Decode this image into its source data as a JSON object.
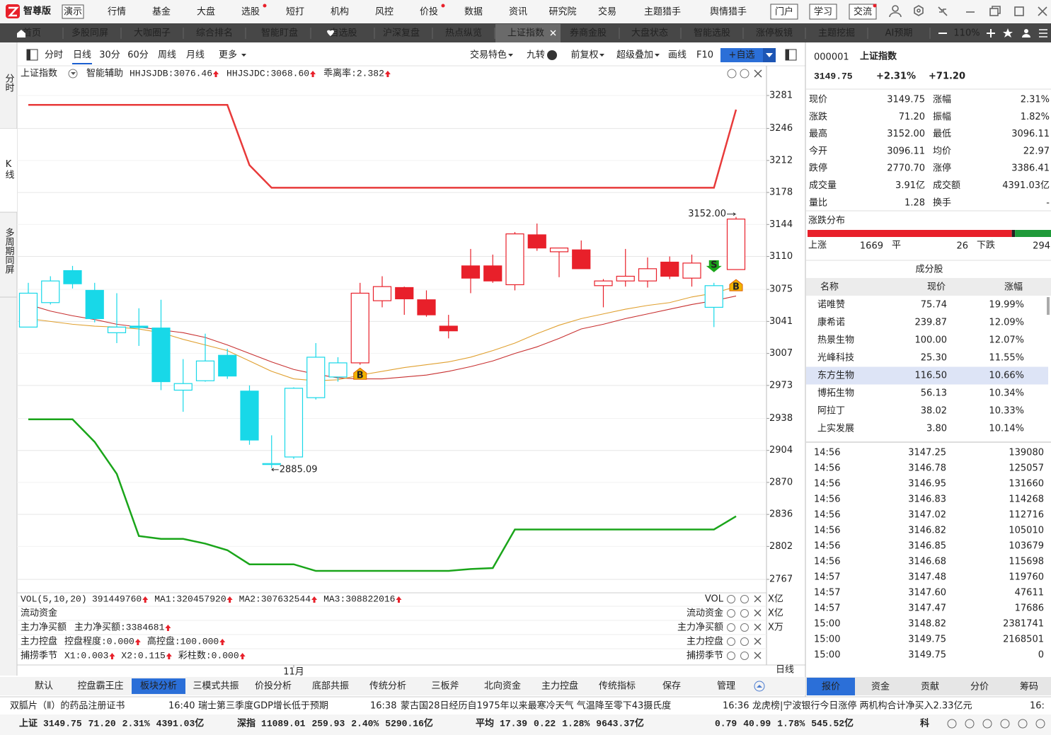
{
  "app": {
    "logo": "智尊版",
    "mode": "演示"
  },
  "menu": [
    "行情",
    "基金",
    "大盘",
    "选股",
    "短打",
    "机构",
    "风控",
    "价投",
    "数据",
    "资讯",
    "研究院",
    "交易",
    "主题猎手",
    "舆情猎手"
  ],
  "menu_right": [
    "门户",
    "学习",
    "交流"
  ],
  "tabs": [
    "首页",
    "多股同屏",
    "大咖圈子",
    "综合排名",
    "智能盯盘",
    "自选股",
    "沪深复盘",
    "热点纵览",
    "上证指数",
    "券商金股",
    "大盘状态",
    "智能选股",
    "涨停板镜",
    "主题挖掘",
    "AI预期"
  ],
  "tabs_active": 8,
  "zoom": "110%",
  "side_tabs": [
    "分时",
    "K线",
    "多周期同屏"
  ],
  "side_active": 1,
  "periods": [
    "分时",
    "日线",
    "30分",
    "60分",
    "周线",
    "月线",
    "更多"
  ],
  "period_active": 1,
  "toolbar": [
    "交易特色",
    "九转",
    "前复权",
    "超级叠加",
    "画线",
    "F10",
    "+自选"
  ],
  "chart_data": {
    "type": "candlestick",
    "title": "上证指数",
    "subtitle": "智能辅助",
    "indicators": [
      {
        "text": "HHJSJDB:3076.46",
        "color": "#d87a00"
      },
      {
        "text": "HHJSJDC:3068.60",
        "color": "#e8202a"
      },
      {
        "text": "乖离率:2.382",
        "color": "#d87a00"
      }
    ],
    "categories": [
      null,
      null,
      null,
      null,
      null,
      null,
      null,
      null,
      null,
      null,
      null,
      null,
      "11月",
      null,
      null,
      null,
      null,
      null,
      null,
      null,
      null,
      null,
      null,
      null,
      null,
      null,
      null,
      null,
      null,
      null,
      null,
      null,
      null
    ],
    "open": [
      3035,
      3061,
      3095,
      3074,
      3029,
      3036,
      3034,
      2968,
      2978,
      3005,
      2967,
      2889,
      2897,
      2960,
      2982,
      2997,
      3063,
      3077,
      3064,
      3036,
      3100,
      3100,
      3080,
      3133,
      3115,
      3117,
      3079,
      3084,
      3084,
      3104,
      3087,
      3056,
      3096.11
    ],
    "high": [
      3082,
      3089,
      3100,
      3082,
      3071,
      3055,
      3064,
      3001,
      3028,
      3012,
      2973,
      2920,
      2971,
      3018,
      3003,
      3082,
      3089,
      3078,
      3074,
      3048,
      3118,
      3112,
      3136,
      3145,
      3119,
      3127,
      3086,
      3118,
      3109,
      3110,
      3112,
      3082,
      3152
    ],
    "low": [
      3035,
      3059,
      3076,
      3040,
      3018,
      3015,
      2968,
      2945,
      2977,
      2980,
      2910,
      2885.09,
      2895,
      2958,
      2977,
      2995,
      3056,
      3048,
      3046,
      3023,
      3071,
      3082,
      3074,
      3116,
      3088,
      3097,
      3056,
      3078,
      3077,
      3086,
      3078,
      3035,
      3096.11
    ],
    "close": [
      3071,
      3084,
      3081,
      3044,
      3035,
      3034.5,
      2977,
      2975,
      2999,
      2983,
      2915,
      2890,
      2970,
      3003,
      2997,
      3071,
      3078,
      3065,
      3048,
      3031,
      3087,
      3084,
      3134,
      3119,
      3119,
      3097,
      3084,
      3089,
      3097,
      3089,
      3103,
      3079,
      3149.75
    ],
    "colors": [
      "#18d8e8",
      "#18d8e8",
      "#18d8e8",
      "#18d8e8",
      "#18d8e8",
      "#18d8e8",
      "#18d8e8",
      "#18d8e8",
      "#18d8e8",
      "#18d8e8",
      "#18d8e8",
      "#18d8e8",
      "#18d8e8",
      "#18d8e8",
      "#18d8e8",
      "#e8202a",
      "#e8202a",
      "#e8202a",
      "#e8202a",
      "#e8202a",
      "#e8202a",
      "#e8202a",
      "#e8202a",
      "#e8202a",
      "#e8202a",
      "#e8202a",
      "#e8202a",
      "#e8202a",
      "#e8202a",
      "#e8202a",
      "#e8202a",
      "#18d8e8",
      "#e8202a"
    ],
    "series": [
      {
        "color": "#e83a3a",
        "values": [
          3271,
          3271,
          3271,
          3271,
          3271,
          3271,
          3271,
          3271,
          3271,
          3271,
          3207,
          3183,
          3183,
          3183,
          3183,
          3183,
          3183,
          3183,
          3183,
          3183,
          3183,
          3183,
          3183,
          3183,
          3183,
          3183,
          3183,
          3183,
          3183,
          3183,
          3183,
          3183,
          3266
        ]
      },
      {
        "color": "#1aa51a",
        "values": [
          2937,
          2937,
          2937,
          2913,
          2879,
          2813,
          2810,
          2810,
          2805,
          2798,
          2783,
          2783,
          2783,
          2776,
          2776,
          2776,
          2776,
          2776,
          2776,
          2776,
          2778,
          2779,
          2820,
          2820,
          2820,
          2820,
          2820,
          2820,
          2820,
          2820,
          2820,
          2820,
          2834
        ]
      },
      {
        "color": "#c83030",
        "values": [
          3059,
          3052,
          3047,
          3043,
          3038,
          3035,
          3032,
          3029,
          3024,
          3016,
          3007,
          2998,
          2990,
          2985,
          2981,
          2980,
          2980,
          2982,
          2984,
          2988,
          2993,
          2999,
          3007,
          3014,
          3023,
          3033,
          3038,
          3044,
          3049,
          3054,
          3059,
          3063,
          3068
        ]
      },
      {
        "color": "#e0a030",
        "values": [
          3044,
          3041,
          3038,
          3036,
          3035,
          3033,
          3029,
          3022,
          3016,
          3010,
          2999,
          2988,
          2980,
          2978,
          2979,
          2984,
          2988,
          2992,
          2995,
          2998,
          3003,
          3010,
          3018,
          3028,
          3037,
          3044,
          3049,
          3054,
          3058,
          3061,
          3067,
          3071,
          3078
        ]
      }
    ],
    "high_label": "3152.00",
    "low_label": "2885.09",
    "signals": [
      {
        "label": "B",
        "at": 15
      },
      {
        "label": "S",
        "at": 31
      },
      {
        "label": "B",
        "at": 32
      }
    ],
    "ylim": [
      2767,
      3281
    ],
    "yticks": [
      3281,
      3246,
      3212,
      3178,
      3144,
      3110,
      3075,
      3041,
      3007,
      2973,
      2938,
      2904,
      2870,
      2836,
      2802,
      2767
    ],
    "grid": true,
    "period_label": "日线"
  },
  "sub_panels": [
    {
      "name": "VOL(5,10,20)",
      "label": "VOL",
      "unit": "X亿",
      "items": [
        {
          "text": "391449760",
          "color": "#222222"
        },
        {
          "text": "MA1:320457920",
          "color": "#d87a00"
        },
        {
          "text": "MA2:307632544",
          "color": "#c000c0"
        },
        {
          "text": "MA3:308822016",
          "color": "#00a000"
        }
      ]
    },
    {
      "name": "流动资金",
      "label": "流动资金",
      "unit": "X亿",
      "items": []
    },
    {
      "name": "主力净买额",
      "label": "主力净买额",
      "unit": "X万",
      "items": [
        {
          "text": "主力净买额:3384681",
          "color": "#e8202a"
        }
      ]
    },
    {
      "name": "主力控盘",
      "label": "主力控盘",
      "items": [
        {
          "text": "控盘程度:0.000",
          "color": "#d87a00"
        },
        {
          "text": "高控盘:100.000",
          "color": "#e8202a"
        }
      ]
    },
    {
      "name": "捕捞季节",
      "label": "捕捞季节",
      "items": [
        {
          "text": "X1:0.003",
          "color": "#e8202a"
        },
        {
          "text": "X2:0.115",
          "color": "#c000c0"
        },
        {
          "text": "彩柱数:0.000",
          "color": "#d87a00"
        }
      ]
    }
  ],
  "bottom_tabs": [
    "默认",
    "控盘霸王庄",
    "板块分析",
    "三模式共振",
    "价投分析",
    "底部共振",
    "传统分析",
    "三板斧",
    "北向资金",
    "主力控盘",
    "传统指标",
    "保存",
    "管理"
  ],
  "bottom_active": 2,
  "news": [
    {
      "text": "双胍片（Ⅱ）的药品注册证书"
    },
    {
      "time": "16:40",
      "text": "瑞士第三季度GDP增长低于预期"
    },
    {
      "time": "16:38",
      "text": "蒙古国28日经历自1975年以来最寒冷天气 气温降至零下43摄氏度"
    },
    {
      "time": "16:36",
      "text": "龙虎榜|宁波银行今日涨停 两机构合计净买入2.33亿元"
    },
    {
      "time": "16:"
    }
  ],
  "index_bar": [
    {
      "name": "上证",
      "values": [
        "3149.75",
        "71.20",
        "2.31%",
        "4391.03亿"
      ]
    },
    {
      "name": "深指",
      "values": [
        "11089.01",
        "259.93",
        "2.40%",
        "5290.16亿"
      ]
    },
    {
      "name": "平均",
      "values": [
        "17.39",
        "0.22",
        "1.28%",
        "9643.37亿"
      ]
    },
    {
      "values": [
        "0.79",
        "40.99",
        "1.78%",
        "545.52亿"
      ]
    },
    {
      "name": "科"
    }
  ],
  "quote": {
    "code": "000001",
    "name": "上证指数",
    "price": "3149.75",
    "pct": "+2.31%",
    "change": "+71.20",
    "fields": [
      {
        "label": "现价",
        "value": "3149.75",
        "color": "#e8202a"
      },
      {
        "label": "涨幅",
        "value": "2.31%",
        "color": "#e8202a"
      },
      {
        "label": "涨跌",
        "value": "71.20",
        "color": "#e8202a"
      },
      {
        "label": "振幅",
        "value": "1.82%",
        "color": "#222222"
      },
      {
        "label": "最高",
        "value": "3152.00",
        "color": "#e8202a"
      },
      {
        "label": "最低",
        "value": "3096.11",
        "color": "#e8202a"
      },
      {
        "label": "今开",
        "value": "3096.11",
        "color": "#e8202a"
      },
      {
        "label": "均价",
        "value": "22.97",
        "color": "#119911"
      },
      {
        "label": "跌停",
        "value": "2770.70",
        "color": "#119911"
      },
      {
        "label": "涨停",
        "value": "3386.41",
        "color": "#e8202a"
      },
      {
        "label": "成交量",
        "value": "3.91亿",
        "color": "#222222"
      },
      {
        "label": "成交额",
        "value": "4391.03亿",
        "color": "#222222"
      },
      {
        "label": "量比",
        "value": "1.28",
        "color": "#222222"
      },
      {
        "label": "换手",
        "value": "-",
        "color": "#222222"
      }
    ]
  },
  "dist": {
    "title": "涨跌分布",
    "up_label": "上涨",
    "up": 1669,
    "flat_label": "平",
    "flat": 26,
    "down_label": "下跌",
    "down": 294
  },
  "constituents": {
    "title": "成分股",
    "headers": [
      "名称",
      "现价",
      "涨幅"
    ],
    "linked_rows": [
      0,
      1
    ],
    "selected_row": 4,
    "rows": [
      [
        "诺唯赞",
        "75.74",
        "19.99%"
      ],
      [
        "康希诺",
        "239.87",
        "12.09%"
      ],
      [
        "热景生物",
        "100.00",
        "12.07%"
      ],
      [
        "光峰科技",
        "25.30",
        "11.55%"
      ],
      [
        "东方生物",
        "116.50",
        "10.66%"
      ],
      [
        "博拓生物",
        "56.13",
        "10.34%"
      ],
      [
        "阿拉丁",
        "38.02",
        "10.33%"
      ],
      [
        "上实发展",
        "3.80",
        "10.14%"
      ]
    ]
  },
  "trades": [
    [
      "14:56",
      "3147.25",
      "139080"
    ],
    [
      "14:56",
      "3146.78",
      "125057"
    ],
    [
      "14:56",
      "3146.95",
      "131660"
    ],
    [
      "14:56",
      "3146.83",
      "114268"
    ],
    [
      "14:56",
      "3147.02",
      "112716"
    ],
    [
      "14:56",
      "3146.82",
      "105010"
    ],
    [
      "14:56",
      "3146.85",
      "103679"
    ],
    [
      "14:56",
      "3146.68",
      "115698"
    ],
    [
      "14:57",
      "3147.48",
      "119760"
    ],
    [
      "14:57",
      "3147.60",
      "47611"
    ],
    [
      "14:57",
      "3147.47",
      "17686"
    ],
    [
      "15:00",
      "3148.82",
      "2381741"
    ],
    [
      "15:00",
      "3149.75",
      "2168501"
    ],
    [
      "15:00",
      "3149.75",
      "0"
    ]
  ],
  "right_tabs": [
    "报价",
    "资金",
    "贡献",
    "分价",
    "筹码"
  ],
  "right_active": 0
}
